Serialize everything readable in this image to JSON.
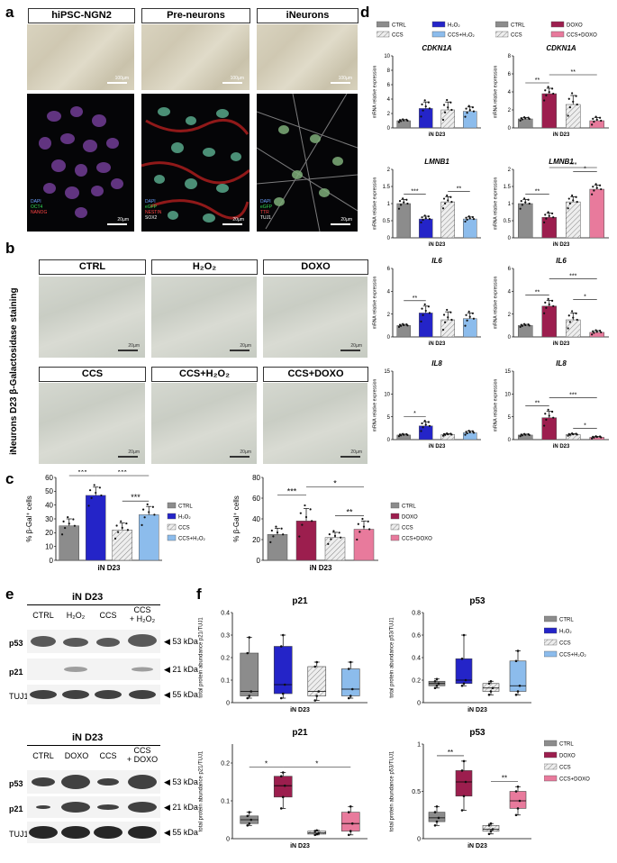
{
  "panels": {
    "a": "a",
    "b": "b",
    "c": "c",
    "d": "d",
    "e": "e",
    "f": "f"
  },
  "panel_a": {
    "headers": [
      "hiPSC-NGN2",
      "Pre-neurons",
      "iNeurons"
    ],
    "channels": [
      [
        {
          "text": "DAPI",
          "color": "#6aa0ff"
        },
        {
          "text": "OCT4",
          "color": "#33dd55"
        },
        {
          "text": "NANOG",
          "color": "#ff4444"
        }
      ],
      [
        {
          "text": "DAPI",
          "color": "#6aa0ff"
        },
        {
          "text": "eGFP",
          "color": "#33dd55"
        },
        {
          "text": "NESTIN",
          "color": "#ff4444"
        },
        {
          "text": "SOX2",
          "color": "#ffffff"
        }
      ],
      [
        {
          "text": "DAPI",
          "color": "#6aa0ff"
        },
        {
          "text": "eGFP",
          "color": "#33dd55"
        },
        {
          "text": "TTR",
          "color": "#ff4444"
        },
        {
          "text": "TUJ1",
          "color": "#ffffff"
        }
      ]
    ],
    "scale_bright": "100µm",
    "scale_fluo": "20µm"
  },
  "panel_b": {
    "side_label": "iNeurons D23 β-Galactosidase staining",
    "labels": [
      "CTRL",
      "H₂O₂",
      "DOXO",
      "CCS",
      "CCS+H₂O₂",
      "CCS+DOXO"
    ],
    "scale": "20µm"
  },
  "panel_c": {
    "ylabel": "% β-Gal⁺ cells",
    "xlabel": "iN D23"
  },
  "panel_e": {
    "title": "iN D23",
    "lanes1": [
      "CTRL",
      "H₂O₂",
      "CCS",
      "CCS\n+ H₂O₂"
    ],
    "lanes2": [
      "CTRL",
      "DOXO",
      "CCS",
      "CCS\n+ DOXO"
    ],
    "rows": [
      "p53",
      "p21",
      "TUJ1"
    ],
    "kda": [
      "◀ 53 kDa",
      "◀ 21 kDa",
      "◀ 55 kDa"
    ]
  },
  "colors": {
    "ctrl": "#8c8c8c",
    "h2o2": "#2424c8",
    "ccs": "#dddddd",
    "ccs_h2o2": "#8cbcec",
    "doxo": "#9c1e4e",
    "ccs_doxo": "#e87a9c"
  },
  "chart_data": [
    {
      "id": "c-left",
      "type": "bar",
      "categories": [
        "CTRL",
        "H2O2",
        "CCS",
        "CCS+H2O2"
      ],
      "values": [
        25,
        47,
        22,
        33
      ],
      "errors": [
        5,
        6,
        5,
        6
      ],
      "ylabel": "% β-Gal⁺ cells",
      "xlabel": "iN D23",
      "ylim": [
        0,
        60
      ],
      "yticks": [
        0,
        10,
        20,
        30,
        40,
        50,
        60
      ],
      "legend": [
        "CTRL",
        "H₂O₂",
        "CCS",
        "CCS+H₂O₂"
      ],
      "sig": [
        {
          "from": 0,
          "to": 1,
          "label": "***",
          "level": 1
        },
        {
          "from": 1,
          "to": 3,
          "label": "***",
          "level": 2
        },
        {
          "from": 2,
          "to": 3,
          "label": "***",
          "level": 0
        }
      ]
    },
    {
      "id": "c-right",
      "type": "bar",
      "categories": [
        "CTRL",
        "DOXO",
        "CCS",
        "CCS+DOXO"
      ],
      "values": [
        25,
        38,
        22,
        30
      ],
      "errors": [
        6,
        12,
        5,
        8
      ],
      "ylabel": "% β-Gal⁺ cells",
      "xlabel": "iN D23",
      "ylim": [
        0,
        80
      ],
      "yticks": [
        0,
        20,
        40,
        60,
        80
      ],
      "legend": [
        "CTRL",
        "DOXO",
        "CCS",
        "CCS+DOXO"
      ],
      "sig": [
        {
          "from": 0,
          "to": 1,
          "label": "***",
          "level": 1
        },
        {
          "from": 1,
          "to": 3,
          "label": "*",
          "level": 2
        },
        {
          "from": 2,
          "to": 3,
          "label": "**",
          "level": 0
        }
      ]
    },
    {
      "id": "d-cdkn1a-h",
      "type": "bar",
      "title": "CDKN1A",
      "categories": [
        "CTRL",
        "H2O2",
        "CCS",
        "CCS+H2O2"
      ],
      "values": [
        1.0,
        2.7,
        2.5,
        2.3
      ],
      "errors": [
        0.15,
        0.9,
        1.1,
        0.6
      ],
      "ylabel": "mRNA relative expression",
      "xlabel": "iN D23",
      "ylim": [
        0,
        10
      ],
      "yticks": [
        0,
        2,
        4,
        6,
        8,
        10
      ],
      "legend": [
        "CTRL",
        "H₂O₂",
        "CCS",
        "CCS+H₂O₂"
      ],
      "sig": []
    },
    {
      "id": "d-cdkn1a-d",
      "type": "bar",
      "title": "CDKN1A",
      "categories": [
        "CTRL",
        "DOXO",
        "CCS",
        "CCS+DOXO"
      ],
      "values": [
        1.0,
        3.8,
        2.6,
        0.8
      ],
      "errors": [
        0.15,
        0.6,
        1.0,
        0.35
      ],
      "ylabel": "mRNA relative expression",
      "xlabel": "iN D23",
      "ylim": [
        0,
        8
      ],
      "yticks": [
        0,
        2,
        4,
        6,
        8
      ],
      "legend": [
        "CTRL",
        "DOXO",
        "CCS",
        "CCS+DOXO"
      ],
      "sig": [
        {
          "from": 0,
          "to": 1,
          "label": "**",
          "level": 0
        },
        {
          "from": 1,
          "to": 3,
          "label": "**",
          "level": 1
        }
      ]
    },
    {
      "id": "d-lmnb1-h",
      "type": "bar",
      "title": "LMNB1",
      "categories": [
        "CTRL",
        "H2O2",
        "CCS",
        "CCS+H2O2"
      ],
      "values": [
        1.0,
        0.55,
        1.05,
        0.55
      ],
      "errors": [
        0.12,
        0.08,
        0.15,
        0.06
      ],
      "ylabel": "mRNA relative expression",
      "xlabel": "iN D23",
      "ylim": [
        0,
        2.0
      ],
      "yticks": [
        0,
        0.5,
        1.0,
        1.5,
        2.0
      ],
      "legend": [
        "CTRL",
        "H₂O₂",
        "CCS",
        "CCS+H₂O₂"
      ],
      "sig": [
        {
          "from": 0,
          "to": 1,
          "label": "***",
          "level": 0
        },
        {
          "from": 2,
          "to": 3,
          "label": "**",
          "level": 0
        }
      ]
    },
    {
      "id": "d-lmnb1-d",
      "type": "bar",
      "title": "LMNB1",
      "categories": [
        "CTRL",
        "DOXO",
        "CCS",
        "CCS+DOXO"
      ],
      "values": [
        1.0,
        0.6,
        1.05,
        1.42
      ],
      "errors": [
        0.12,
        0.12,
        0.15,
        0.12
      ],
      "ylabel": "mRNA relative expression",
      "xlabel": "iN D23",
      "ylim": [
        0,
        2.0
      ],
      "yticks": [
        0,
        0.5,
        1.0,
        1.5,
        2.0
      ],
      "legend": [
        "CTRL",
        "DOXO",
        "CCS",
        "CCS+DOXO"
      ],
      "sig": [
        {
          "from": 0,
          "to": 1,
          "label": "**",
          "level": 0
        },
        {
          "from": 2,
          "to": 3,
          "label": "*",
          "level": 1
        },
        {
          "from": 1,
          "to": 3,
          "label": "***",
          "level": 2
        }
      ]
    },
    {
      "id": "d-il6-h",
      "type": "bar",
      "title": "IL6",
      "categories": [
        "CTRL",
        "H2O2",
        "CCS",
        "CCS+H2O2"
      ],
      "values": [
        1.0,
        2.1,
        1.5,
        1.6
      ],
      "errors": [
        0.1,
        0.6,
        0.7,
        0.5
      ],
      "ylabel": "mRNA relative expression",
      "xlabel": "iN D23",
      "ylim": [
        0,
        6
      ],
      "yticks": [
        0,
        2,
        4,
        6
      ],
      "legend": [
        "CTRL",
        "H₂O₂",
        "CCS",
        "CCS+H₂O₂"
      ],
      "sig": [
        {
          "from": 0,
          "to": 1,
          "label": "**",
          "level": 0
        }
      ]
    },
    {
      "id": "d-il6-d",
      "type": "bar",
      "title": "IL6",
      "categories": [
        "CTRL",
        "DOXO",
        "CCS",
        "CCS+DOXO"
      ],
      "values": [
        1.0,
        2.7,
        1.5,
        0.4
      ],
      "errors": [
        0.1,
        0.5,
        0.6,
        0.15
      ],
      "ylabel": "mRNA relative expression",
      "xlabel": "iN D23",
      "ylim": [
        0,
        6
      ],
      "yticks": [
        0,
        2,
        4,
        6
      ],
      "legend": [
        "CTRL",
        "DOXO",
        "CCS",
        "CCS+DOXO"
      ],
      "sig": [
        {
          "from": 0,
          "to": 1,
          "label": "**",
          "level": 0
        },
        {
          "from": 2,
          "to": 3,
          "label": "*",
          "level": 1
        },
        {
          "from": 1,
          "to": 3,
          "label": "***",
          "level": 2
        }
      ]
    },
    {
      "id": "d-il8-h",
      "type": "bar",
      "title": "IL8",
      "categories": [
        "CTRL",
        "H2O2",
        "CCS",
        "CCS+H2O2"
      ],
      "values": [
        1.0,
        3.0,
        1.1,
        1.5
      ],
      "errors": [
        0.2,
        0.9,
        0.2,
        0.35
      ],
      "ylabel": "mRNA relative expression",
      "xlabel": "iN D23",
      "ylim": [
        0,
        15
      ],
      "yticks": [
        0,
        5,
        10,
        15
      ],
      "legend": [
        "CTRL",
        "H₂O₂",
        "CCS",
        "CCS+H₂O₂"
      ],
      "sig": [
        {
          "from": 0,
          "to": 1,
          "label": "*",
          "level": 0
        }
      ]
    },
    {
      "id": "d-il8-d",
      "type": "bar",
      "title": "IL8",
      "categories": [
        "CTRL",
        "DOXO",
        "CCS",
        "CCS+DOXO"
      ],
      "values": [
        1.0,
        4.8,
        1.1,
        0.5
      ],
      "errors": [
        0.2,
        1.4,
        0.2,
        0.2
      ],
      "ylabel": "mRNA relative expression",
      "xlabel": "iN D23",
      "ylim": [
        0,
        15
      ],
      "yticks": [
        0,
        5,
        10,
        15
      ],
      "legend": [
        "CTRL",
        "DOXO",
        "CCS",
        "CCS+DOXO"
      ],
      "sig": [
        {
          "from": 0,
          "to": 1,
          "label": "**",
          "level": 0
        },
        {
          "from": 2,
          "to": 3,
          "label": "*",
          "level": 0
        },
        {
          "from": 1,
          "to": 3,
          "label": "***",
          "level": 1
        }
      ]
    },
    {
      "id": "f-p21-h",
      "type": "box",
      "title": "p21",
      "categories": [
        "CTRL",
        "H2O2",
        "CCS",
        "CCS+H2O2"
      ],
      "boxes": [
        [
          0.02,
          0.03,
          0.05,
          0.22,
          0.29
        ],
        [
          0.02,
          0.04,
          0.08,
          0.25,
          0.3
        ],
        [
          0.01,
          0.03,
          0.05,
          0.16,
          0.18
        ],
        [
          0.02,
          0.03,
          0.06,
          0.15,
          0.18
        ]
      ],
      "ylabel": "total protein abundance p21/TUJ1",
      "xlabel": "iN D23",
      "ylim": [
        0,
        0.4
      ],
      "yticks": [
        0,
        0.1,
        0.2,
        0.3,
        0.4
      ],
      "legend": [
        "CTRL",
        "H₂O₂",
        "CCS",
        "CCS+H₂O₂"
      ],
      "sig": []
    },
    {
      "id": "f-p53-h",
      "type": "box",
      "title": "p53",
      "categories": [
        "CTRL",
        "H2O2",
        "CCS",
        "CCS+H2O2"
      ],
      "boxes": [
        [
          0.13,
          0.15,
          0.17,
          0.19,
          0.21
        ],
        [
          0.15,
          0.17,
          0.2,
          0.39,
          0.6
        ],
        [
          0.07,
          0.1,
          0.13,
          0.17,
          0.19
        ],
        [
          0.07,
          0.1,
          0.15,
          0.37,
          0.46
        ]
      ],
      "ylabel": "total protein abundance p53/TUJ1",
      "xlabel": "iN D23",
      "ylim": [
        0,
        0.8
      ],
      "yticks": [
        0,
        0.2,
        0.4,
        0.6,
        0.8
      ],
      "legend": [
        "CTRL",
        "H₂O₂",
        "CCS",
        "CCS+H₂O₂"
      ],
      "sig": []
    },
    {
      "id": "f-p21-d",
      "type": "box",
      "title": "p21",
      "categories": [
        "CTRL",
        "DOXO",
        "CCS",
        "CCS+DOXO"
      ],
      "boxes": [
        [
          0.035,
          0.04,
          0.05,
          0.06,
          0.07
        ],
        [
          0.08,
          0.11,
          0.14,
          0.165,
          0.175
        ],
        [
          0.01,
          0.012,
          0.015,
          0.02,
          0.022
        ],
        [
          0.01,
          0.02,
          0.04,
          0.07,
          0.085
        ]
      ],
      "ylabel": "total protein abundance p21/TUJ1",
      "xlabel": "iN D23",
      "ylim": [
        0,
        0.25
      ],
      "yticks": [
        0,
        0.1,
        0.2
      ],
      "legend": [
        "CTRL",
        "DOXO",
        "CCS",
        "CCS+DOXO"
      ],
      "sig": [
        {
          "from": 0,
          "to": 1,
          "label": "*",
          "level": 0
        },
        {
          "from": 1,
          "to": 3,
          "label": "*",
          "level": 0
        }
      ]
    },
    {
      "id": "f-p53-d",
      "type": "box",
      "title": "p53",
      "categories": [
        "CTRL",
        "DOXO",
        "CCS",
        "CCS+DOXO"
      ],
      "boxes": [
        [
          0.14,
          0.18,
          0.22,
          0.28,
          0.34
        ],
        [
          0.3,
          0.45,
          0.6,
          0.72,
          0.82
        ],
        [
          0.05,
          0.08,
          0.1,
          0.14,
          0.16
        ],
        [
          0.25,
          0.32,
          0.4,
          0.5,
          0.55
        ]
      ],
      "ylabel": "total protein abundance p53/TUJ1",
      "xlabel": "iN D23",
      "ylim": [
        0,
        1.0
      ],
      "yticks": [
        0,
        0.5,
        1.0
      ],
      "legend": [
        "CTRL",
        "DOXO",
        "CCS",
        "CCS+DOXO"
      ],
      "sig": [
        {
          "from": 0,
          "to": 1,
          "label": "**",
          "level": 0
        },
        {
          "from": 2,
          "to": 3,
          "label": "**",
          "level": 0
        }
      ]
    }
  ]
}
